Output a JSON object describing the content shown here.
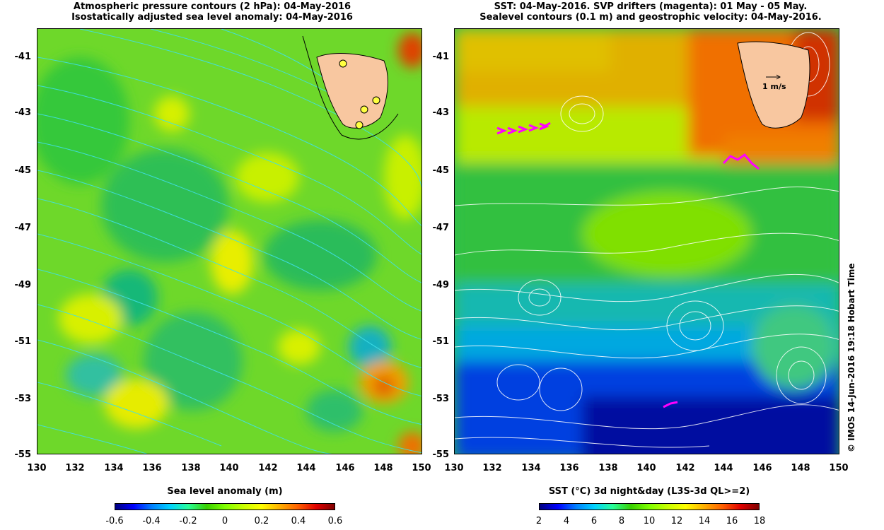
{
  "left_panel": {
    "title_line1": "Atmospheric pressure contours (2 hPa): 04-May-2016",
    "title_line2": "Isostatically adjusted sea level anomaly: 04-May-2016",
    "colorbar_label": "Sea level anomaly (m)",
    "colorbar_ticks": [
      "-0.6",
      "-0.4",
      "-0.2",
      "0",
      "0.2",
      "0.4",
      "0.6"
    ]
  },
  "right_panel": {
    "title_line1": "SST: 04-May-2016. SVP drifters (magenta): 01 May - 05 May.",
    "title_line2": "Sealevel contours (0.1 m) and geostrophic velocity: 04-May-2016.",
    "colorbar_label": "SST (°C) 3d night&day (L3S-3d QL>=2)",
    "colorbar_ticks": [
      "2",
      "4",
      "6",
      "8",
      "10",
      "12",
      "14",
      "16",
      "18"
    ],
    "vector_scale_label": "1 m/s"
  },
  "axes": {
    "y_ticks": [
      "-41",
      "-43",
      "-45",
      "-47",
      "-49",
      "-51",
      "-53",
      "-55"
    ],
    "x_ticks": [
      "130",
      "132",
      "134",
      "136",
      "138",
      "140",
      "142",
      "144",
      "146",
      "148",
      "150"
    ]
  },
  "credit": "© IMOS 14-Jun-2016 19:18 Hobart Time",
  "colors": {
    "land": "#f8c7a0",
    "pressure_contours": "#40e0e8",
    "drifters": "#ff00ff",
    "sealevel_contours": "#ffffff"
  }
}
